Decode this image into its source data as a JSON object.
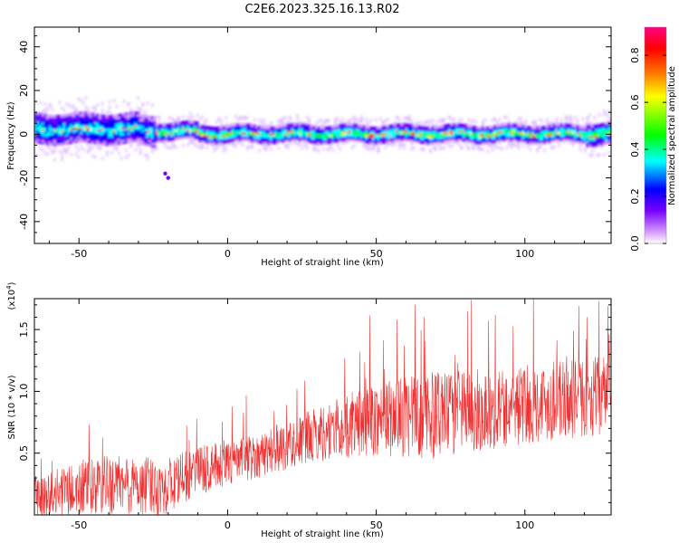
{
  "chart_data": [
    {
      "type": "heatmap",
      "title": "C2E6.2023.325.16.13.R02",
      "xlabel": "Height of straight line (km)",
      "ylabel": "Frequency (Hz)",
      "xlim": [
        -65,
        129
      ],
      "ylim": [
        -50,
        49
      ],
      "xticks": [
        -50,
        0,
        50,
        100
      ],
      "yticks": [
        -40,
        -20,
        0,
        20,
        40
      ],
      "grid": false,
      "colorbar": {
        "label": "Normalized spectral amplitude",
        "range": [
          0,
          0.92
        ],
        "ticks": [
          "0.0",
          "0.2",
          "0.4",
          "0.6",
          "0.8"
        ],
        "colors": [
          "#ffffff",
          "#d8a0ff",
          "#7800ff",
          "#0000ff",
          "#00ffff",
          "#00ff00",
          "#ffff00",
          "#ff8000",
          "#ff0000",
          "#ff0080"
        ]
      },
      "ridge": {
        "description_values_hz": {
          "center_left_km_-65_to_-30": 2,
          "center_right_km_-10_to_129": 0
        },
        "band_halfwidth_hz": [
          6,
          3
        ],
        "outliers": [
          {
            "x": -20,
            "y": -20
          },
          {
            "x": -21,
            "y": -18
          }
        ]
      }
    },
    {
      "type": "line",
      "xlabel": "Height of straight line (km)",
      "ylabel": "SNR (10 * v/v)",
      "multiplier": "(x10",
      "multiplier_exp": "4",
      "multiplier_close": ")",
      "xlim": [
        -65,
        129
      ],
      "ylim": [
        0,
        17500
      ],
      "xticks": [
        -50,
        0,
        50,
        100
      ],
      "yticks": [
        5000,
        10000,
        15000
      ],
      "ytick_labels": [
        "0.5",
        "1.0",
        "1.5"
      ],
      "series": [
        {
          "name": "SNR",
          "color": "#f03030",
          "trend": [
            {
              "x": -65,
              "mean": 1400,
              "spread": 1800
            },
            {
              "x": -40,
              "mean": 2400,
              "spread": 2500
            },
            {
              "x": -20,
              "mean": 2300,
              "spread": 2300
            },
            {
              "x": -10,
              "mean": 3600,
              "spread": 2000
            },
            {
              "x": 10,
              "mean": 4800,
              "spread": 1800
            },
            {
              "x": 30,
              "mean": 6500,
              "spread": 2200
            },
            {
              "x": 50,
              "mean": 7800,
              "spread": 3000
            },
            {
              "x": 70,
              "mean": 8000,
              "spread": 3500
            },
            {
              "x": 100,
              "mean": 8900,
              "spread": 3200
            },
            {
              "x": 129,
              "mean": 9800,
              "spread": 3200
            }
          ],
          "peaks": [
            {
              "x": 63,
              "y": 17000
            },
            {
              "x": 82,
              "y": 17400
            },
            {
              "x": 125,
              "y": 17300
            },
            {
              "x": 128,
              "y": 16900
            },
            {
              "x": 66,
              "y": 16000
            },
            {
              "x": 57,
              "y": 15800
            },
            {
              "x": 90,
              "y": 16200
            },
            {
              "x": 121,
              "y": 16000
            }
          ]
        }
      ]
    }
  ]
}
